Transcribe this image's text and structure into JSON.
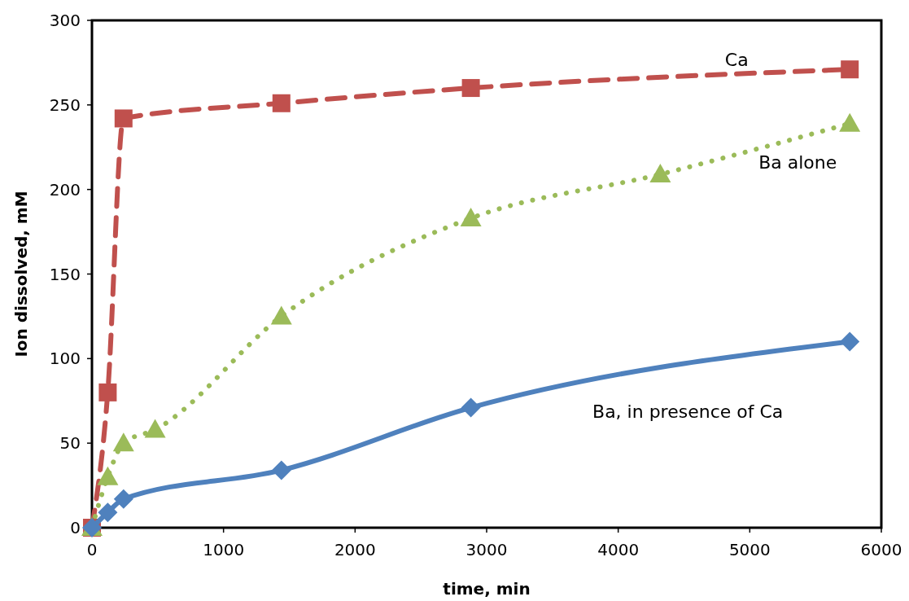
{
  "chart_data": {
    "type": "line",
    "xlabel": "time, min",
    "ylabel": "Ion dissolved, mM",
    "xlim": [
      0,
      6000
    ],
    "ylim": [
      0,
      300
    ],
    "xticks": [
      0,
      1000,
      2000,
      3000,
      4000,
      5000,
      6000
    ],
    "yticks": [
      0,
      50,
      100,
      150,
      200,
      250,
      300
    ],
    "grid": false,
    "series": [
      {
        "name": "Ca",
        "color": "#c0504d",
        "marker": "square",
        "line_style": "dashed",
        "x": [
          0,
          120,
          240,
          1440,
          2880,
          5760
        ],
        "values": [
          0,
          80,
          242,
          251,
          260,
          271
        ]
      },
      {
        "name": "Ba alone",
        "color": "#9bbb59",
        "marker": "triangle",
        "line_style": "dotted",
        "x": [
          0,
          120,
          240,
          480,
          1440,
          2880,
          4320,
          5760
        ],
        "values": [
          0,
          30,
          50,
          58,
          125,
          183,
          209,
          239
        ]
      },
      {
        "name": "Ba, in presence of Ca",
        "color": "#4f81bd",
        "marker": "diamond",
        "line_style": "solid",
        "x": [
          0,
          120,
          240,
          1440,
          2880,
          5760
        ],
        "values": [
          0,
          9,
          17,
          34,
          71,
          110
        ]
      }
    ]
  }
}
